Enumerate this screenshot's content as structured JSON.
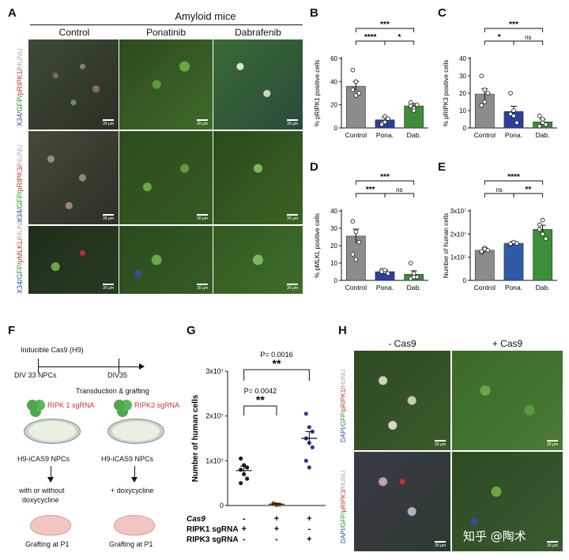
{
  "panels": {
    "a": "A",
    "b": "B",
    "c": "C",
    "d": "D",
    "e": "E",
    "f": "F",
    "g": "G",
    "h": "H"
  },
  "panel_a": {
    "group_title": "Amyloid mice",
    "columns": [
      "Control",
      "Ponatinib",
      "Dabrafenib"
    ],
    "row_labels": [
      {
        "x34": "X34/",
        "gfp": "GFP/",
        "marker": "pRIPK1/",
        "hunu": "HUNU"
      },
      {
        "x34": "X34/",
        "gfp": "GFP/",
        "marker": "pRIPK3/",
        "hunu": "HUNU"
      },
      {
        "x34": "X34/",
        "gfp": "GFP/",
        "marker": "pMLKL/",
        "hunu": "HUNU"
      }
    ],
    "scale": "30 µm"
  },
  "panel_h": {
    "columns": [
      "- Cas9",
      "+ Cas9"
    ],
    "row_labels": [
      {
        "dapi": "DAPI/",
        "gfp": "GFP/",
        "marker": "pRIPK1/",
        "hunu": "HUNU"
      },
      {
        "dapi": "DAPI/",
        "gfp": "GFP/",
        "marker": "pRIPK3/",
        "hunu": "HUNU"
      }
    ],
    "scale": "30 µm",
    "watermark": "知乎 @陶术"
  },
  "panel_f": {
    "top_label": "Inducible Cas9 (H9)",
    "div33": "DIV 33 NPCs",
    "div35": "DIV35",
    "transduction": "Transduction & grafting",
    "sg1": "RIPK 1 sgRNA",
    "sg3": "RIPK3 sgRNA",
    "npc_left": "H9-iCAS9 NPCs",
    "npc_right": "H9-iCAS9 NPCs",
    "treat_left_1": "with or without",
    "treat_left_2": "doxycycline",
    "treat_right": "+ doxycycline",
    "graft_left": "Grafting at P1",
    "graft_right": "Grafting at P1"
  },
  "colors": {
    "control": "#8c8c8c",
    "ponatinib": "#2b3f9e",
    "dabrafenib": "#3f8c3a",
    "dab_e": "#3c8f36",
    "pona_e": "#2f5aa8",
    "g_left": "#1c1c1c",
    "g_mid": "#8a4a1e",
    "g_right": "#2c3b8c",
    "sg_red": "#c0392b"
  },
  "chart_data": [
    {
      "id": "B",
      "type": "bar",
      "categories": [
        "Control",
        "Pona.",
        "Dab."
      ],
      "values": [
        36,
        7,
        19
      ],
      "errors": [
        4,
        2.5,
        2
      ],
      "points": [
        [
          50,
          40,
          30,
          33,
          28
        ],
        [
          4,
          10,
          8,
          3,
          5
        ],
        [
          22,
          17,
          20,
          19,
          15
        ]
      ],
      "ylabel": "% pRIPK1 positive cells",
      "ylim": [
        0,
        60
      ],
      "yticks": [
        0,
        20,
        40,
        60
      ],
      "sig": [
        {
          "from": 0,
          "to": 2,
          "label": "***"
        },
        {
          "from": 0,
          "to": 1,
          "label": "****"
        },
        {
          "from": 1,
          "to": 2,
          "label": "*"
        }
      ]
    },
    {
      "id": "C",
      "type": "bar",
      "categories": [
        "Control",
        "Pona.",
        "Dab."
      ],
      "values": [
        19.5,
        9.5,
        3.5
      ],
      "errors": [
        3,
        3,
        1.5
      ],
      "points": [
        [
          30,
          22,
          20,
          13,
          15
        ],
        [
          20,
          10,
          3,
          8,
          7
        ],
        [
          7,
          5,
          2,
          1,
          3
        ]
      ],
      "ylabel": "% pRIPK3 positive cells",
      "ylim": [
        0,
        40
      ],
      "yticks": [
        0,
        10,
        20,
        30,
        40
      ],
      "sig": [
        {
          "from": 0,
          "to": 2,
          "label": "***"
        },
        {
          "from": 0,
          "to": 1,
          "label": "*"
        },
        {
          "from": 1,
          "to": 2,
          "label": "ns"
        }
      ]
    },
    {
      "id": "D",
      "type": "bar",
      "categories": [
        "Control",
        "Pona.",
        "Dab."
      ],
      "values": [
        25.5,
        5,
        3.5
      ],
      "errors": [
        4,
        1,
        2
      ],
      "points": [
        [
          34,
          28,
          22,
          15,
          12
        ],
        [
          6,
          5,
          4,
          5,
          6
        ],
        [
          10,
          4,
          2,
          1,
          2
        ]
      ],
      "ylabel": "% pMLKL positive cells",
      "ylim": [
        0,
        40
      ],
      "yticks": [
        0,
        10,
        20,
        30,
        40
      ],
      "sig": [
        {
          "from": 0,
          "to": 2,
          "label": "***"
        },
        {
          "from": 0,
          "to": 1,
          "label": "***"
        },
        {
          "from": 1,
          "to": 2,
          "label": "ns"
        }
      ]
    },
    {
      "id": "E",
      "type": "bar",
      "categories": [
        "Control",
        "Pona.",
        "Dab."
      ],
      "values": [
        13000000.0,
        16000000.0,
        22000000.0
      ],
      "errors": [
        1000000.0,
        800000.0,
        1800000.0
      ],
      "points": [
        [
          12000000.0,
          14000000.0,
          13000000.0,
          12500000.0,
          13500000.0
        ],
        [
          15500000.0,
          16500000.0,
          16000000.0,
          15800000.0
        ],
        [
          24000000.0,
          26000000.0,
          18000000.0,
          22000000.0,
          20000000.0
        ]
      ],
      "ylabel": "Number of human cells",
      "ylim": [
        0,
        30000000.0
      ],
      "yticks": [
        0,
        10000000.0,
        20000000.0,
        30000000.0
      ],
      "ytick_labels": [
        "0",
        "1x10⁷",
        "2x10⁷",
        "3x10⁷"
      ],
      "sig": [
        {
          "from": 0,
          "to": 2,
          "label": "****"
        },
        {
          "from": 0,
          "to": 1,
          "label": "ns"
        },
        {
          "from": 1,
          "to": 2,
          "label": "**"
        }
      ]
    },
    {
      "id": "G",
      "type": "scatter",
      "categories": [
        "1",
        "2",
        "3"
      ],
      "means": [
        7800000.0,
        300000.0,
        15000000.0
      ],
      "errors": [
        1000000.0,
        100000.0,
        1500000.0
      ],
      "points": [
        [
          10500000.0,
          9000000.0,
          8500000.0,
          8000000.0,
          7000000.0,
          6000000.0,
          5000000.0
        ],
        [
          500000.0,
          300000.0,
          200000.0,
          400000.0,
          100000.0
        ],
        [
          20500000.0,
          17500000.0,
          16500000.0,
          15000000.0,
          14000000.0,
          13000000.0,
          10000000.0,
          8500000.0
        ]
      ],
      "ylabel": "Number of human cells",
      "ylim": [
        0,
        30000000.0
      ],
      "yticks": [
        0,
        10000000.0,
        20000000.0,
        30000000.0
      ],
      "ytick_labels": [
        "0",
        "1x10⁷",
        "2x10⁷",
        "3x10⁷"
      ],
      "pval_top": "P= 0.0016",
      "pval_low": "P= 0.0042",
      "stars": "**",
      "rows": [
        {
          "label": "Cas9",
          "marks": [
            "-",
            "+",
            "+"
          ]
        },
        {
          "label": "RIPK1 sgRNA",
          "marks": [
            "+",
            "+",
            "-"
          ]
        },
        {
          "label": "RIPK3 sgRNA",
          "marks": [
            "-",
            "-",
            "+"
          ]
        }
      ]
    }
  ]
}
